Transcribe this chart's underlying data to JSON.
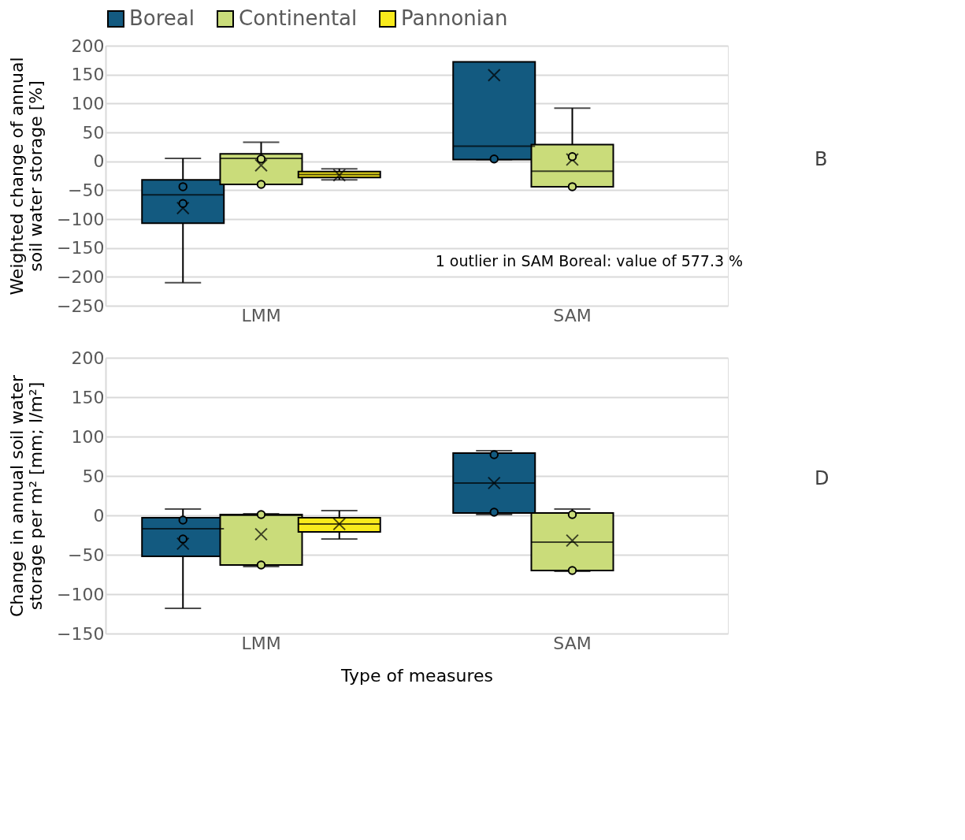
{
  "chart_data": [
    {
      "type": "box",
      "categories": [
        "LMM",
        "SAM"
      ],
      "ylabel": "Weighted change of annual\nsoil water storage [%]",
      "ylim": [
        -250,
        200
      ],
      "yticks": [
        -250,
        -200,
        -150,
        -100,
        -50,
        0,
        50,
        100,
        150,
        200
      ],
      "grid": "y",
      "legend": "top",
      "annotations": [
        "1 outlier in SAM Boreal: value of 577.3 %",
        "B"
      ],
      "series": [
        {
          "name": "Boreal",
          "color": "#135a80",
          "boxes": [
            {
              "low": -210,
              "q1": -107,
              "median": -58,
              "q3": -32,
              "high": 5,
              "mean": -81,
              "outliers": [
                -44,
                -73
              ]
            },
            {
              "low": 3,
              "q1": 3,
              "median": 26,
              "q3": 172,
              "high": 172,
              "mean": 149,
              "outliers": [
                4
              ]
            }
          ]
        },
        {
          "name": "Continental",
          "color": "#cadc7a",
          "boxes": [
            {
              "low": -40,
              "q1": -40,
              "median": 5,
              "q3": 13,
              "high": 33,
              "mean": -7,
              "outliers": [
                4,
                -40
              ]
            },
            {
              "low": -44,
              "q1": -44,
              "median": -17,
              "q3": 29,
              "high": 92,
              "mean": 3,
              "outliers": [
                8,
                -44
              ]
            }
          ]
        },
        {
          "name": "Pannonian",
          "color": "#f8ea1c",
          "boxes": [
            {
              "low": -32,
              "q1": -28,
              "median": -23,
              "q3": -18,
              "high": -13,
              "mean": -24
            },
            null
          ]
        }
      ]
    },
    {
      "type": "box",
      "categories": [
        "LMM",
        "SAM"
      ],
      "xlabel": "Type of measures",
      "ylabel": "Change in annual soil water\nstorage per m²  [mm; l/m²]",
      "ylim": [
        -150,
        200
      ],
      "yticks": [
        -150,
        -100,
        -50,
        0,
        50,
        100,
        150,
        200
      ],
      "grid": "y",
      "annotations": [
        "D"
      ],
      "series": [
        {
          "name": "Boreal",
          "color": "#135a80",
          "boxes": [
            {
              "low": -118,
              "q1": -52,
              "median": -17,
              "q3": -3,
              "high": 8,
              "mean": -36,
              "outliers": [
                -6,
                -30
              ]
            },
            {
              "low": 1,
              "q1": 3,
              "median": 41,
              "q3": 79,
              "high": 82,
              "mean": 41,
              "outliers": [
                77,
                4
              ]
            }
          ]
        },
        {
          "name": "Continental",
          "color": "#cadc7a",
          "boxes": [
            {
              "low": -65,
              "q1": -63,
              "median": 0,
              "q3": 1,
              "high": 2,
              "mean": -24,
              "outliers": [
                1,
                -63
              ]
            },
            {
              "low": -71,
              "q1": -70,
              "median": -34,
              "q3": 3,
              "high": 8,
              "mean": -32,
              "outliers": [
                1,
                -70
              ]
            }
          ]
        },
        {
          "name": "Pannonian",
          "color": "#f8ea1c",
          "boxes": [
            {
              "low": -30,
              "q1": -21,
              "median": -11,
              "q3": -3,
              "high": 6,
              "mean": -11
            },
            null
          ]
        }
      ]
    }
  ]
}
